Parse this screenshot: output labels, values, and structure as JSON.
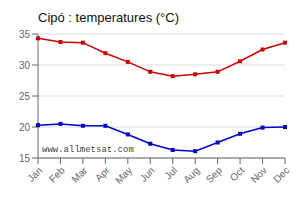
{
  "chart_data": {
    "type": "line",
    "title": "Cipó : temperatures (°C)",
    "categories": [
      "Jan",
      "Feb",
      "Mar",
      "Apr",
      "May",
      "Jun",
      "Jul",
      "Aug",
      "Sep",
      "Oct",
      "Nov",
      "Dec"
    ],
    "series": [
      {
        "color": "#cc0000",
        "values": [
          34.3,
          33.7,
          33.6,
          31.9,
          30.5,
          28.9,
          28.2,
          28.5,
          28.9,
          30.6,
          32.5,
          33.6
        ]
      },
      {
        "color": "#0000cc",
        "values": [
          20.3,
          20.5,
          20.2,
          20.2,
          18.8,
          17.3,
          16.3,
          16.1,
          17.5,
          18.9,
          19.9,
          20.0
        ]
      }
    ],
    "ylim": [
      15,
      35
    ],
    "yticks": [
      15,
      20,
      25,
      30,
      35
    ],
    "grid": true,
    "marker": "square",
    "annotations": [
      "www.allmetsat.com"
    ]
  }
}
